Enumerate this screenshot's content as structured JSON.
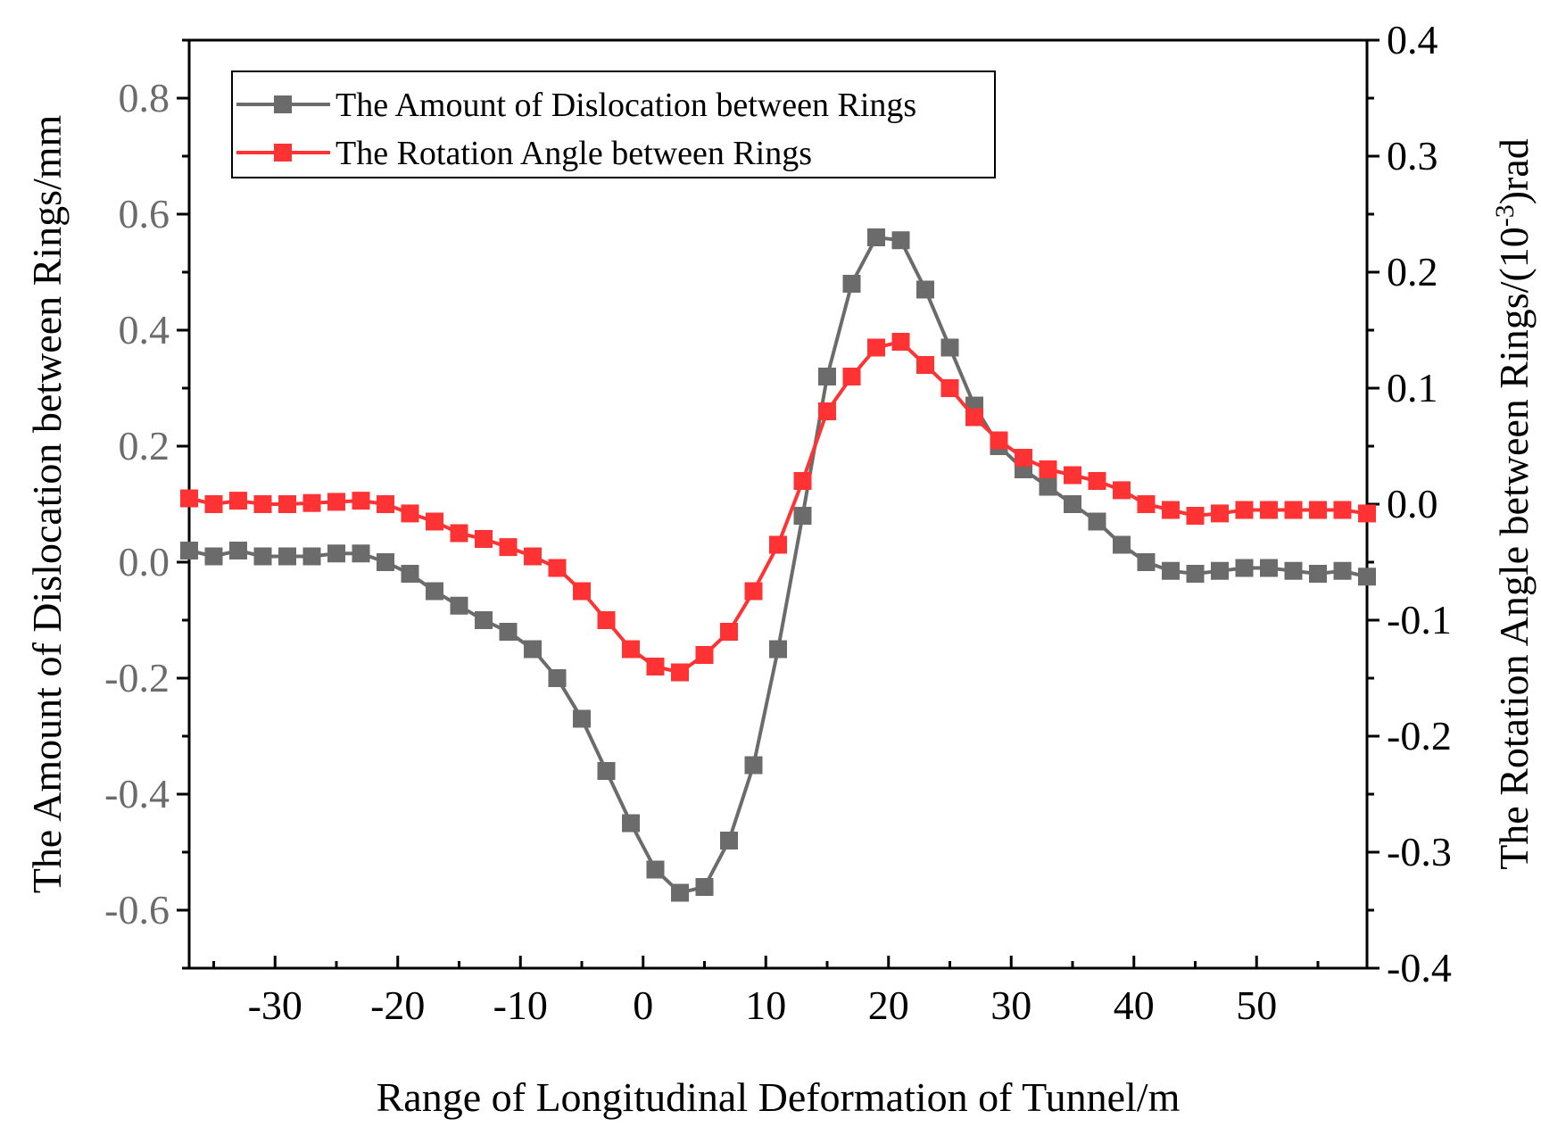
{
  "chart_data": {
    "type": "line",
    "title": "",
    "xlabel": "Range of Longitudinal Deformation of Tunnel/m",
    "ylabel_left": "The Amount of Dislocation between Rings/mm",
    "ylabel_right_prefix": "The Rotation Angle between Rings/(10",
    "ylabel_right_sup": "-3",
    "ylabel_right_suffix": ")rad",
    "xlim": [
      -37,
      59
    ],
    "ylim_left": [
      -0.7,
      0.9
    ],
    "ylim_right": [
      -0.4,
      0.4
    ],
    "xticks": [
      -30,
      -20,
      -10,
      0,
      10,
      20,
      30,
      40,
      50
    ],
    "xtick_labels": [
      "-30",
      "-20",
      "-10",
      "0",
      "10",
      "20",
      "30",
      "40",
      "50"
    ],
    "yticks_left": [
      0.8,
      0.6,
      0.4,
      0.2,
      0.0,
      -0.2,
      -0.4,
      -0.6
    ],
    "ytick_labels_left": [
      "0.8",
      "0.6",
      "0.4",
      "0.2",
      "0.0",
      "-0.2",
      "-0.4",
      "-0.6"
    ],
    "yticks_right": [
      0.4,
      0.3,
      0.2,
      0.1,
      0.0,
      -0.1,
      -0.2,
      -0.3,
      -0.4
    ],
    "ytick_labels_right": [
      "0.4",
      "0.3",
      "0.2",
      "0.1",
      "0.0",
      "-0.1",
      "-0.2",
      "-0.3",
      "-0.4"
    ],
    "legend_position": "top-left",
    "x": [
      -37,
      -35,
      -33,
      -31,
      -29,
      -27,
      -25,
      -23,
      -21,
      -19,
      -17,
      -15,
      -13,
      -11,
      -9,
      -7,
      -5,
      -3,
      -1,
      1,
      3,
      5,
      7,
      9,
      11,
      13,
      15,
      17,
      19,
      21,
      23,
      25,
      27,
      29,
      31,
      33,
      35,
      37,
      39,
      41,
      43,
      45,
      47,
      49,
      51,
      53,
      55,
      57,
      59
    ],
    "series": [
      {
        "name": "The Amount of Dislocation between Rings",
        "axis": "left",
        "color": "#6b6b6b",
        "marker": "square",
        "values": [
          0.02,
          0.01,
          0.02,
          0.01,
          0.01,
          0.01,
          0.015,
          0.015,
          0.0,
          -0.02,
          -0.05,
          -0.075,
          -0.1,
          -0.12,
          -0.15,
          -0.2,
          -0.27,
          -0.36,
          -0.45,
          -0.53,
          -0.57,
          -0.56,
          -0.48,
          -0.35,
          -0.15,
          0.08,
          0.32,
          0.48,
          0.56,
          0.555,
          0.47,
          0.37,
          0.27,
          0.2,
          0.16,
          0.13,
          0.1,
          0.07,
          0.03,
          0.0,
          -0.015,
          -0.02,
          -0.015,
          -0.01,
          -0.01,
          -0.015,
          -0.02,
          -0.015,
          -0.025
        ]
      },
      {
        "name": "The Rotation Angle between Rings",
        "axis": "right",
        "color": "#ff3333",
        "marker": "square",
        "values": [
          0.005,
          0.0,
          0.003,
          0.0,
          0.0,
          0.001,
          0.002,
          0.003,
          0.0,
          -0.008,
          -0.015,
          -0.025,
          -0.03,
          -0.037,
          -0.045,
          -0.055,
          -0.075,
          -0.1,
          -0.125,
          -0.14,
          -0.145,
          -0.13,
          -0.11,
          -0.075,
          -0.035,
          0.02,
          0.08,
          0.11,
          0.135,
          0.14,
          0.12,
          0.1,
          0.075,
          0.055,
          0.04,
          0.03,
          0.025,
          0.02,
          0.012,
          0.0,
          -0.005,
          -0.01,
          -0.008,
          -0.005,
          -0.005,
          -0.005,
          -0.005,
          -0.005,
          -0.008
        ]
      }
    ]
  }
}
